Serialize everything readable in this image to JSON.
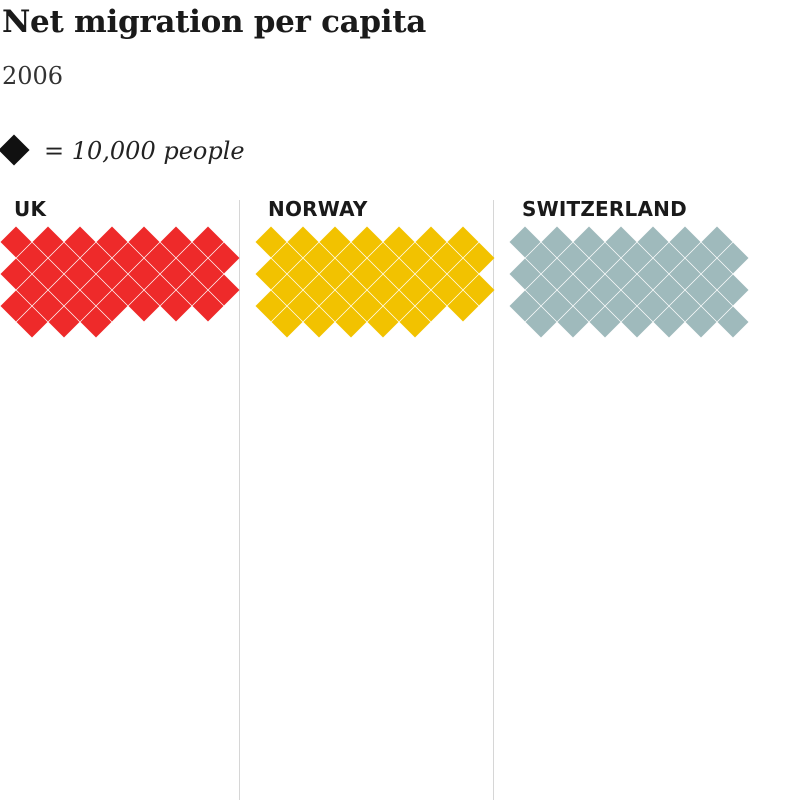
{
  "title": "Net migration per capita",
  "subtitle": "2006",
  "legend": {
    "icon": "diamond-icon",
    "text": "= 10,000 people"
  },
  "chart_data": {
    "type": "pictogram",
    "unit_value": 10000,
    "unit_label": "= 10,000 people",
    "series": [
      {
        "name": "UK",
        "count": 38,
        "color": "#ee2a2a"
      },
      {
        "name": "NORWAY",
        "count": 40,
        "color": "#f2c200"
      },
      {
        "name": "SWITZERLAND",
        "count": 42,
        "color": "#9fbabc"
      }
    ]
  }
}
